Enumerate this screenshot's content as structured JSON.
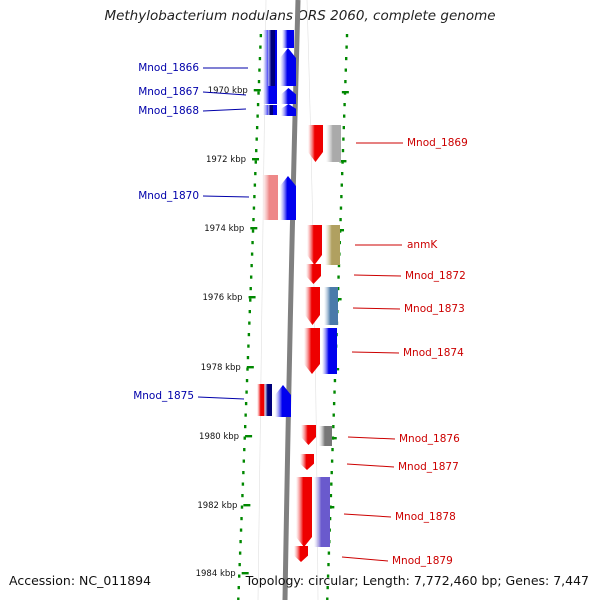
{
  "title": "Methylobacterium nodulans ORS 2060, complete genome",
  "footer": {
    "accession": "Accession: NC_011894",
    "topology": "Topology: circular; Length: 7,772,460 bp; Genes: 7,447"
  },
  "colors": {
    "forward_gene": "#0000ee",
    "reverse_gene": "#ee0000",
    "forward_label": "#0000aa",
    "reverse_label": "#cc0000",
    "track_dots": "#008800",
    "backbone": "#808080",
    "gene_navy": "#00007a",
    "gene_pink": "#ee8888",
    "gene_gray": "#aaaaaa",
    "gene_olive": "#b0a060",
    "gene_steelblue": "#4a7aaa",
    "gene_dimgray": "#777777",
    "gene_slateblue": "#6a5acd"
  },
  "ticks": [
    "1970 kbp",
    "1972 kbp",
    "1974 kbp",
    "1976 kbp",
    "1978 kbp",
    "1980 kbp",
    "1982 kbp",
    "1984 kbp"
  ],
  "genes": [
    {
      "label": "Mnod_1866",
      "strand": "forward"
    },
    {
      "label": "Mnod_1867",
      "strand": "forward"
    },
    {
      "label": "Mnod_1868",
      "strand": "forward"
    },
    {
      "label": "Mnod_1869",
      "strand": "reverse"
    },
    {
      "label": "Mnod_1870",
      "strand": "forward"
    },
    {
      "label": "anmK",
      "strand": "reverse"
    },
    {
      "label": "Mnod_1872",
      "strand": "reverse"
    },
    {
      "label": "Mnod_1873",
      "strand": "reverse"
    },
    {
      "label": "Mnod_1874",
      "strand": "reverse"
    },
    {
      "label": "Mnod_1875",
      "strand": "forward"
    },
    {
      "label": "Mnod_1876",
      "strand": "reverse"
    },
    {
      "label": "Mnod_1877",
      "strand": "reverse"
    },
    {
      "label": "Mnod_1878",
      "strand": "reverse"
    },
    {
      "label": "Mnod_1879",
      "strand": "reverse"
    }
  ]
}
